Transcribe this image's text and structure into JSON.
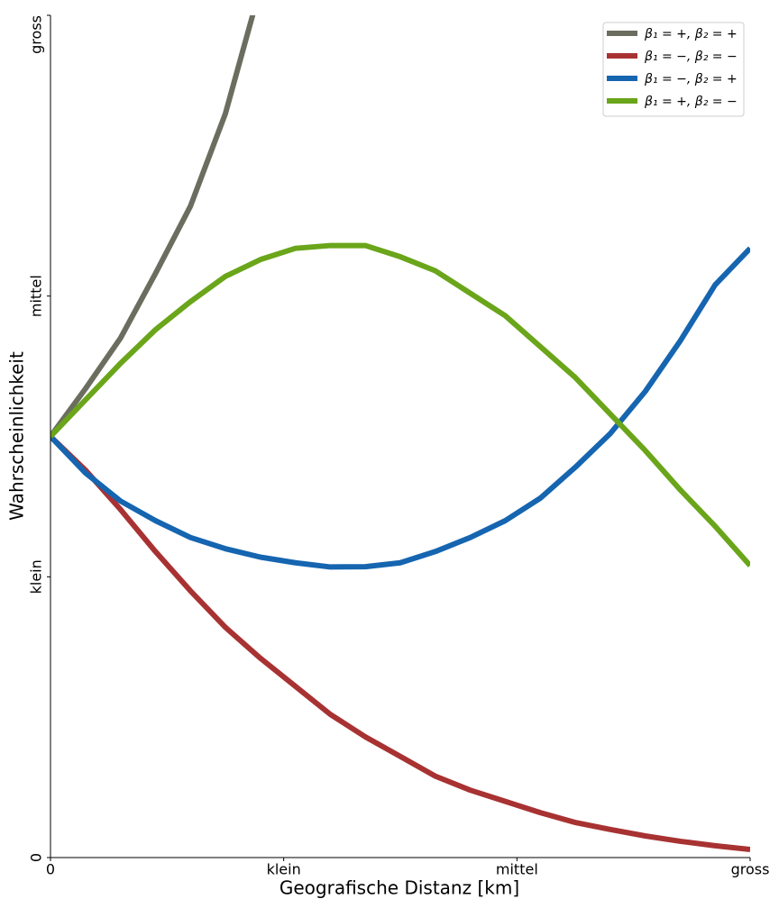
{
  "chart_data": {
    "type": "line",
    "xlabel": "Geografische Distanz [km]",
    "ylabel": "Wahrscheinlichkeit",
    "x": [
      0,
      0.15,
      0.3,
      0.45,
      0.6,
      0.75,
      0.9,
      1.05,
      1.2,
      1.35,
      1.5,
      1.65,
      1.8,
      1.95,
      2.1,
      2.25,
      2.4,
      2.55,
      2.7,
      2.85,
      3.0
    ],
    "xlim": [
      0,
      3
    ],
    "ylim": [
      0,
      3
    ],
    "xticks": [
      0,
      {
        "value": 1,
        "label": "klein"
      },
      {
        "value": 2,
        "label": "mittel"
      },
      {
        "value": 3,
        "label": "gross"
      }
    ],
    "yticks": [
      0,
      {
        "value": 1,
        "label": "klein"
      },
      {
        "value": 2,
        "label": "mittel"
      },
      {
        "value": 3,
        "label": "gross"
      }
    ],
    "legend": "upper right",
    "series": [
      {
        "name": "β₁ = +, β₂ = +",
        "color": "#6b6e5f",
        "values": [
          1.5,
          1.67,
          1.85,
          2.08,
          2.32,
          2.65,
          3.1,
          null,
          null,
          null,
          null,
          null,
          null,
          null,
          null,
          null,
          null,
          null,
          null,
          null,
          null
        ]
      },
      {
        "name": "β₁ = −, β₂ = −",
        "color": "#a83232",
        "values": [
          1.5,
          1.38,
          1.24,
          1.09,
          0.95,
          0.82,
          0.71,
          0.61,
          0.51,
          0.43,
          0.36,
          0.29,
          0.24,
          0.2,
          0.16,
          0.125,
          0.1,
          0.077,
          0.058,
          0.042,
          0.029
        ]
      },
      {
        "name": "β₁ = −, β₂ = +",
        "color": "#1565b0",
        "values": [
          1.5,
          1.37,
          1.27,
          1.2,
          1.14,
          1.1,
          1.07,
          1.05,
          1.035,
          1.036,
          1.05,
          1.09,
          1.14,
          1.2,
          1.28,
          1.39,
          1.51,
          1.66,
          1.84,
          2.04,
          2.17
        ]
      },
      {
        "name": "β₁ = +, β₂ = −",
        "color": "#6aa51a",
        "values": [
          1.5,
          1.63,
          1.76,
          1.88,
          1.98,
          2.07,
          2.13,
          2.17,
          2.18,
          2.18,
          2.14,
          2.09,
          2.01,
          1.93,
          1.82,
          1.71,
          1.58,
          1.45,
          1.31,
          1.18,
          1.04
        ]
      }
    ]
  }
}
